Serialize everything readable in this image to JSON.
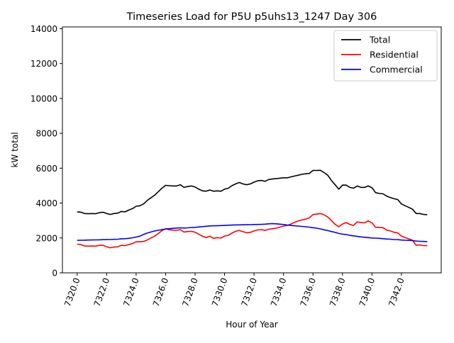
{
  "chart_data": {
    "type": "line",
    "title": "Timeseries Load for P5U p5uhs13_1247  Day 306",
    "xlabel": "Hour of Year",
    "ylabel": "kW total",
    "xlim": [
      7319.0,
      7344.7
    ],
    "ylim": [
      0,
      14100
    ],
    "xticks": [
      7320,
      7322,
      7324,
      7326,
      7328,
      7330,
      7332,
      7334,
      7336,
      7338,
      7340,
      7342
    ],
    "xtick_labels": [
      "7320.0",
      "7322.0",
      "7324.0",
      "7326.0",
      "7328.0",
      "7330.0",
      "7332.0",
      "7334.0",
      "7336.0",
      "7338.0",
      "7340.0",
      "7342.0"
    ],
    "yticks": [
      0,
      2000,
      4000,
      6000,
      8000,
      10000,
      12000,
      14000
    ],
    "ytick_labels": [
      "0",
      "2000",
      "4000",
      "6000",
      "8000",
      "10000",
      "12000",
      "14000"
    ],
    "legend_position": "top-right",
    "x": [
      7320.0,
      7320.25,
      7320.5,
      7320.75,
      7321.0,
      7321.25,
      7321.5,
      7321.75,
      7322.0,
      7322.25,
      7322.5,
      7322.75,
      7323.0,
      7323.25,
      7323.5,
      7323.75,
      7324.0,
      7324.25,
      7324.5,
      7324.75,
      7325.0,
      7325.25,
      7325.5,
      7325.75,
      7326.0,
      7326.25,
      7326.5,
      7326.75,
      7327.0,
      7327.25,
      7327.5,
      7327.75,
      7328.0,
      7328.25,
      7328.5,
      7328.75,
      7329.0,
      7329.25,
      7329.5,
      7329.75,
      7330.0,
      7330.25,
      7330.5,
      7330.75,
      7331.0,
      7331.25,
      7331.5,
      7331.75,
      7332.0,
      7332.25,
      7332.5,
      7332.75,
      7333.0,
      7333.25,
      7333.5,
      7333.75,
      7334.0,
      7334.25,
      7334.5,
      7334.75,
      7335.0,
      7335.25,
      7335.5,
      7335.75,
      7336.0,
      7336.25,
      7336.5,
      7336.75,
      7337.0,
      7337.25,
      7337.5,
      7337.75,
      7338.0,
      7338.25,
      7338.5,
      7338.75,
      7339.0,
      7339.25,
      7339.5,
      7339.75,
      7340.0,
      7340.25,
      7340.5,
      7340.75,
      7341.0,
      7341.25,
      7341.5,
      7341.75,
      7342.0,
      7342.25,
      7342.5,
      7342.75,
      7343.0,
      7343.25,
      7343.5,
      7343.75
    ],
    "series": [
      {
        "name": "Total",
        "color": "#000000",
        "values": [
          3500,
          3480,
          3400,
          3390,
          3400,
          3390,
          3450,
          3480,
          3400,
          3350,
          3400,
          3420,
          3520,
          3500,
          3600,
          3680,
          3820,
          3850,
          3950,
          4150,
          4300,
          4450,
          4650,
          4850,
          5020,
          5000,
          4980,
          4980,
          5050,
          4900,
          4950,
          4980,
          4920,
          4800,
          4700,
          4680,
          4750,
          4680,
          4700,
          4680,
          4800,
          4850,
          5000,
          5100,
          5180,
          5100,
          5050,
          5100,
          5200,
          5280,
          5300,
          5250,
          5350,
          5380,
          5400,
          5430,
          5450,
          5450,
          5500,
          5550,
          5600,
          5650,
          5680,
          5700,
          5870,
          5870,
          5880,
          5750,
          5600,
          5300,
          5050,
          4800,
          5030,
          5030,
          4900,
          4850,
          4980,
          4900,
          4900,
          4980,
          4880,
          4600,
          4550,
          4530,
          4400,
          4320,
          4250,
          4200,
          3950,
          3850,
          3750,
          3650,
          3400,
          3400,
          3350,
          3330
        ]
      },
      {
        "name": "Residential",
        "color": "#ff0000",
        "values": [
          1640,
          1620,
          1540,
          1530,
          1540,
          1530,
          1580,
          1580,
          1500,
          1440,
          1480,
          1490,
          1580,
          1560,
          1620,
          1680,
          1780,
          1780,
          1800,
          1880,
          2000,
          2100,
          2250,
          2420,
          2530,
          2470,
          2450,
          2440,
          2480,
          2340,
          2370,
          2380,
          2330,
          2220,
          2100,
          2020,
          2100,
          1980,
          2020,
          1990,
          2110,
          2150,
          2280,
          2380,
          2430,
          2360,
          2300,
          2320,
          2400,
          2460,
          2480,
          2430,
          2500,
          2530,
          2560,
          2620,
          2680,
          2720,
          2800,
          2900,
          2980,
          3030,
          3080,
          3150,
          3340,
          3370,
          3400,
          3330,
          3200,
          3000,
          2780,
          2640,
          2800,
          2880,
          2780,
          2720,
          2920,
          2880,
          2870,
          2980,
          2870,
          2610,
          2610,
          2590,
          2450,
          2400,
          2330,
          2290,
          2100,
          2020,
          1950,
          1870,
          1580,
          1600,
          1560,
          1560
        ]
      },
      {
        "name": "Commercial",
        "color": "#0000ff",
        "values": [
          1860,
          1870,
          1875,
          1880,
          1885,
          1890,
          1895,
          1900,
          1905,
          1910,
          1920,
          1930,
          1945,
          1960,
          1980,
          2010,
          2050,
          2100,
          2200,
          2280,
          2340,
          2400,
          2440,
          2480,
          2510,
          2530,
          2550,
          2570,
          2580,
          2570,
          2580,
          2600,
          2610,
          2630,
          2650,
          2670,
          2690,
          2700,
          2700,
          2710,
          2720,
          2730,
          2740,
          2745,
          2750,
          2755,
          2760,
          2765,
          2770,
          2775,
          2780,
          2790,
          2810,
          2820,
          2810,
          2790,
          2770,
          2740,
          2720,
          2700,
          2680,
          2660,
          2640,
          2620,
          2590,
          2560,
          2520,
          2470,
          2420,
          2370,
          2320,
          2260,
          2220,
          2200,
          2150,
          2120,
          2090,
          2060,
          2040,
          2020,
          2000,
          1990,
          1980,
          1960,
          1940,
          1930,
          1910,
          1900,
          1880,
          1870,
          1860,
          1850,
          1820,
          1810,
          1800,
          1790
        ]
      }
    ]
  }
}
